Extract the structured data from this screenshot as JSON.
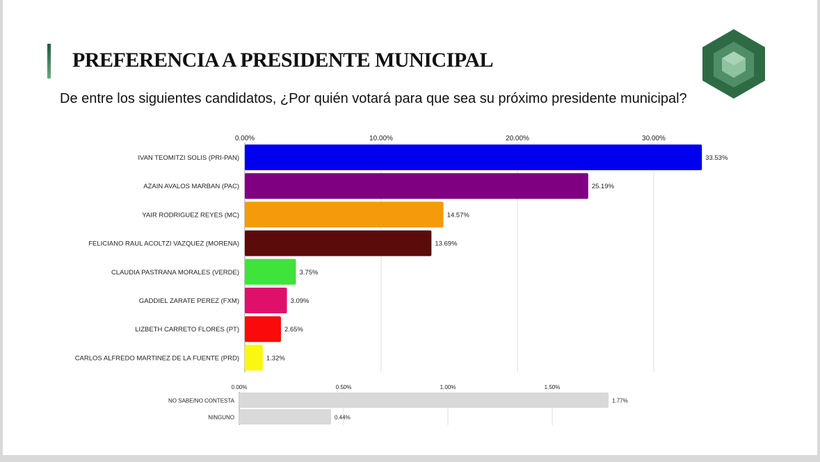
{
  "title": "PREFERENCIA A PRESIDENTE MUNICIPAL",
  "question": "De entre los siguientes candidatos, ¿Por quién votará para que sea su próximo presidente municipal?",
  "colors": {
    "accent": "#2e6b45"
  },
  "chart_data": [
    {
      "type": "bar",
      "orientation": "horizontal",
      "xlim": [
        0,
        33.53
      ],
      "ticks": [
        {
          "v": 0,
          "label": "0.00%"
        },
        {
          "v": 10,
          "label": "10.00%"
        },
        {
          "v": 20,
          "label": "20.00%"
        },
        {
          "v": 30,
          "label": "30.00%"
        }
      ],
      "categories": [
        "IVAN TEOMITZI SOLIS (PRI-PAN)",
        "AZAIN AVALOS MARBAN (PAC)",
        "YAIR RODRIGUEZ REYES (MC)",
        "FELICIANO RAUL ACOLTZI VAZQUEZ (MORENA)",
        "CLAUDIA PASTRANA MORALES (VERDE)",
        "GADDIEL ZARATE PEREZ (FXM)",
        "LIZBETH CARRETO FLORES (PT)",
        "CARLOS ALFREDO MARTINEZ DE LA FUENTE (PRD)"
      ],
      "values": [
        33.53,
        25.19,
        14.57,
        13.69,
        3.75,
        3.09,
        2.65,
        1.32
      ],
      "labels": [
        "33.53%",
        "25.19%",
        "14.57%",
        "13.69%",
        "3.75%",
        "3.09%",
        "2.65%",
        "1.32%"
      ],
      "colors": [
        "#0000ee",
        "#7f0080",
        "#f59a0a",
        "#5c0b0b",
        "#3fe43a",
        "#e0106a",
        "#fa0a0a",
        "#f8f810"
      ],
      "grid": true
    },
    {
      "type": "bar",
      "orientation": "horizontal",
      "xlim": [
        0,
        1.77
      ],
      "ticks": [
        {
          "v": 0,
          "label": "0.00%"
        },
        {
          "v": 0.5,
          "label": "0.50%"
        },
        {
          "v": 1,
          "label": "1.00%"
        },
        {
          "v": 1.5,
          "label": "1.50%"
        }
      ],
      "categories": [
        "NO SABE/NO CONTESTA",
        "NINGUNO"
      ],
      "values": [
        1.77,
        0.44
      ],
      "labels": [
        "1.77%",
        "0.44%"
      ],
      "colors": [
        "#d9d9d9",
        "#d9d9d9"
      ],
      "grid": true
    }
  ]
}
